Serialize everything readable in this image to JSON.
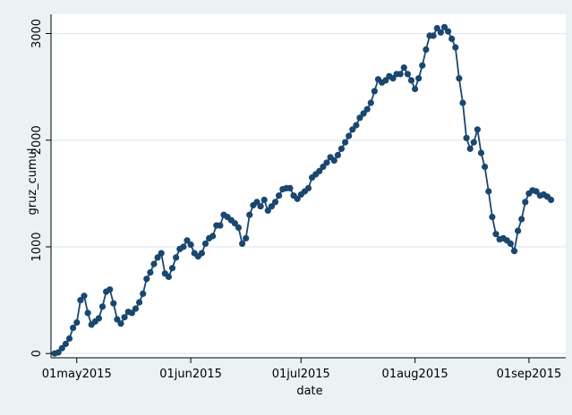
{
  "colors": {
    "background": "#eaf2f3",
    "plot_region": "#ffffff",
    "gridline": "#e2eaec",
    "series": "#1a476f",
    "axis": "#000000"
  },
  "chart_data": {
    "type": "line",
    "xlabel": "date",
    "ylabel": "gruz_cumul",
    "xlim": [
      "2015-04-24",
      "2015-09-11"
    ],
    "ylim": [
      -40,
      3180
    ],
    "grid": true,
    "markers": true,
    "x_ticks": [
      {
        "date": "2015-05-01",
        "label": "01may2015"
      },
      {
        "date": "2015-06-01",
        "label": "01jun2015"
      },
      {
        "date": "2015-07-01",
        "label": "01jul2015"
      },
      {
        "date": "2015-08-01",
        "label": "01aug2015"
      },
      {
        "date": "2015-09-01",
        "label": "01sep2015"
      }
    ],
    "y_ticks": [
      {
        "value": 0,
        "label": "0"
      },
      {
        "value": 1000,
        "label": "1000"
      },
      {
        "value": 2000,
        "label": "2000"
      },
      {
        "value": 3000,
        "label": "3000"
      }
    ],
    "series": [
      {
        "points": [
          [
            "2015-04-25",
            0
          ],
          [
            "2015-04-26",
            10
          ],
          [
            "2015-04-27",
            50
          ],
          [
            "2015-04-28",
            90
          ],
          [
            "2015-04-29",
            140
          ],
          [
            "2015-04-30",
            240
          ],
          [
            "2015-05-01",
            290
          ],
          [
            "2015-05-02",
            500
          ],
          [
            "2015-05-03",
            540
          ],
          [
            "2015-05-04",
            380
          ],
          [
            "2015-05-05",
            270
          ],
          [
            "2015-05-06",
            300
          ],
          [
            "2015-05-07",
            330
          ],
          [
            "2015-05-08",
            440
          ],
          [
            "2015-05-09",
            580
          ],
          [
            "2015-05-10",
            600
          ],
          [
            "2015-05-11",
            470
          ],
          [
            "2015-05-12",
            320
          ],
          [
            "2015-05-13",
            280
          ],
          [
            "2015-05-14",
            340
          ],
          [
            "2015-05-15",
            390
          ],
          [
            "2015-05-16",
            380
          ],
          [
            "2015-05-17",
            420
          ],
          [
            "2015-05-18",
            480
          ],
          [
            "2015-05-19",
            560
          ],
          [
            "2015-05-20",
            700
          ],
          [
            "2015-05-21",
            760
          ],
          [
            "2015-05-22",
            840
          ],
          [
            "2015-05-23",
            900
          ],
          [
            "2015-05-24",
            940
          ],
          [
            "2015-05-25",
            750
          ],
          [
            "2015-05-26",
            720
          ],
          [
            "2015-05-27",
            800
          ],
          [
            "2015-05-28",
            900
          ],
          [
            "2015-05-29",
            980
          ],
          [
            "2015-05-30",
            1000
          ],
          [
            "2015-05-31",
            1060
          ],
          [
            "2015-06-01",
            1020
          ],
          [
            "2015-06-02",
            940
          ],
          [
            "2015-06-03",
            910
          ],
          [
            "2015-06-04",
            940
          ],
          [
            "2015-06-05",
            1030
          ],
          [
            "2015-06-06",
            1080
          ],
          [
            "2015-06-07",
            1100
          ],
          [
            "2015-06-08",
            1200
          ],
          [
            "2015-06-09",
            1200
          ],
          [
            "2015-06-10",
            1300
          ],
          [
            "2015-06-11",
            1280
          ],
          [
            "2015-06-12",
            1250
          ],
          [
            "2015-06-13",
            1220
          ],
          [
            "2015-06-14",
            1180
          ],
          [
            "2015-06-15",
            1030
          ],
          [
            "2015-06-16",
            1080
          ],
          [
            "2015-06-17",
            1300
          ],
          [
            "2015-06-18",
            1390
          ],
          [
            "2015-06-19",
            1420
          ],
          [
            "2015-06-20",
            1380
          ],
          [
            "2015-06-21",
            1440
          ],
          [
            "2015-06-22",
            1340
          ],
          [
            "2015-06-23",
            1380
          ],
          [
            "2015-06-24",
            1420
          ],
          [
            "2015-06-25",
            1480
          ],
          [
            "2015-06-26",
            1540
          ],
          [
            "2015-06-27",
            1550
          ],
          [
            "2015-06-28",
            1550
          ],
          [
            "2015-06-29",
            1480
          ],
          [
            "2015-06-30",
            1450
          ],
          [
            "2015-07-01",
            1490
          ],
          [
            "2015-07-02",
            1520
          ],
          [
            "2015-07-03",
            1550
          ],
          [
            "2015-07-04",
            1650
          ],
          [
            "2015-07-05",
            1680
          ],
          [
            "2015-07-06",
            1710
          ],
          [
            "2015-07-07",
            1750
          ],
          [
            "2015-07-08",
            1790
          ],
          [
            "2015-07-09",
            1840
          ],
          [
            "2015-07-10",
            1810
          ],
          [
            "2015-07-11",
            1860
          ],
          [
            "2015-07-12",
            1920
          ],
          [
            "2015-07-13",
            1980
          ],
          [
            "2015-07-14",
            2040
          ],
          [
            "2015-07-15",
            2100
          ],
          [
            "2015-07-16",
            2140
          ],
          [
            "2015-07-17",
            2210
          ],
          [
            "2015-07-18",
            2250
          ],
          [
            "2015-07-19",
            2290
          ],
          [
            "2015-07-20",
            2350
          ],
          [
            "2015-07-21",
            2460
          ],
          [
            "2015-07-22",
            2570
          ],
          [
            "2015-07-23",
            2540
          ],
          [
            "2015-07-24",
            2560
          ],
          [
            "2015-07-25",
            2600
          ],
          [
            "2015-07-26",
            2580
          ],
          [
            "2015-07-27",
            2620
          ],
          [
            "2015-07-28",
            2620
          ],
          [
            "2015-07-29",
            2680
          ],
          [
            "2015-07-30",
            2620
          ],
          [
            "2015-07-31",
            2560
          ],
          [
            "2015-08-01",
            2480
          ],
          [
            "2015-08-02",
            2580
          ],
          [
            "2015-08-03",
            2700
          ],
          [
            "2015-08-04",
            2850
          ],
          [
            "2015-08-05",
            2980
          ],
          [
            "2015-08-06",
            2980
          ],
          [
            "2015-08-07",
            3050
          ],
          [
            "2015-08-08",
            3010
          ],
          [
            "2015-08-09",
            3060
          ],
          [
            "2015-08-10",
            3020
          ],
          [
            "2015-08-11",
            2950
          ],
          [
            "2015-08-12",
            2870
          ],
          [
            "2015-08-13",
            2580
          ],
          [
            "2015-08-14",
            2350
          ],
          [
            "2015-08-15",
            2020
          ],
          [
            "2015-08-16",
            1920
          ],
          [
            "2015-08-17",
            1980
          ],
          [
            "2015-08-18",
            2100
          ],
          [
            "2015-08-19",
            1880
          ],
          [
            "2015-08-20",
            1750
          ],
          [
            "2015-08-21",
            1520
          ],
          [
            "2015-08-22",
            1280
          ],
          [
            "2015-08-23",
            1120
          ],
          [
            "2015-08-24",
            1070
          ],
          [
            "2015-08-25",
            1080
          ],
          [
            "2015-08-26",
            1060
          ],
          [
            "2015-08-27",
            1030
          ],
          [
            "2015-08-28",
            960
          ],
          [
            "2015-08-29",
            1150
          ],
          [
            "2015-08-30",
            1260
          ],
          [
            "2015-08-31",
            1420
          ],
          [
            "2015-09-01",
            1500
          ],
          [
            "2015-09-02",
            1530
          ],
          [
            "2015-09-03",
            1520
          ],
          [
            "2015-09-04",
            1480
          ],
          [
            "2015-09-05",
            1490
          ],
          [
            "2015-09-06",
            1470
          ],
          [
            "2015-09-07",
            1440
          ]
        ]
      }
    ]
  }
}
